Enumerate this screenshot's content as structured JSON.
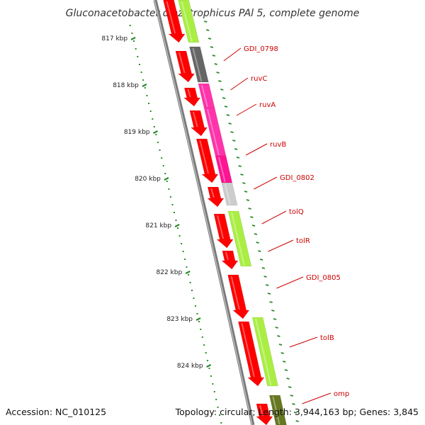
{
  "title": "Gluconacetobacter diazotrophicus PAl 5, complete genome",
  "footer": {
    "accession": "Accession: NC_010125",
    "topology": "Topology: circular; Length: 3,944,163 bp; Genes: 3,845"
  },
  "kbp_ticks": [
    {
      "label": "817 kbp",
      "kbp": 817
    },
    {
      "label": "818 kbp",
      "kbp": 818
    },
    {
      "label": "819 kbp",
      "kbp": 819
    },
    {
      "label": "820 kbp",
      "kbp": 820
    },
    {
      "label": "821 kbp",
      "kbp": 821
    },
    {
      "label": "822 kbp",
      "kbp": 822
    },
    {
      "label": "823 kbp",
      "kbp": 823
    },
    {
      "label": "824 kbp",
      "kbp": 824
    }
  ],
  "genes": [
    {
      "name": "GDI_0798",
      "color": "#666666"
    },
    {
      "name": "ruvC",
      "color": "#ff33aa"
    },
    {
      "name": "ruvA",
      "color": "#ff33aa"
    },
    {
      "name": "ruvB",
      "color": "#ff1493"
    },
    {
      "name": "GDI_0802",
      "color": "#cccccc"
    },
    {
      "name": "tolQ",
      "color": "#aaee44"
    },
    {
      "name": "tolR",
      "color": "#aaee44"
    },
    {
      "name": "GDI_0805",
      "color": "#ff0000"
    },
    {
      "name": "tolB",
      "color": "#aaee44"
    },
    {
      "name": "omp",
      "color": "#667722"
    }
  ],
  "colors": {
    "cds": "#ff0000",
    "backbone": "#888888",
    "label": "#cc0000",
    "tick": "#2a8a2a"
  }
}
